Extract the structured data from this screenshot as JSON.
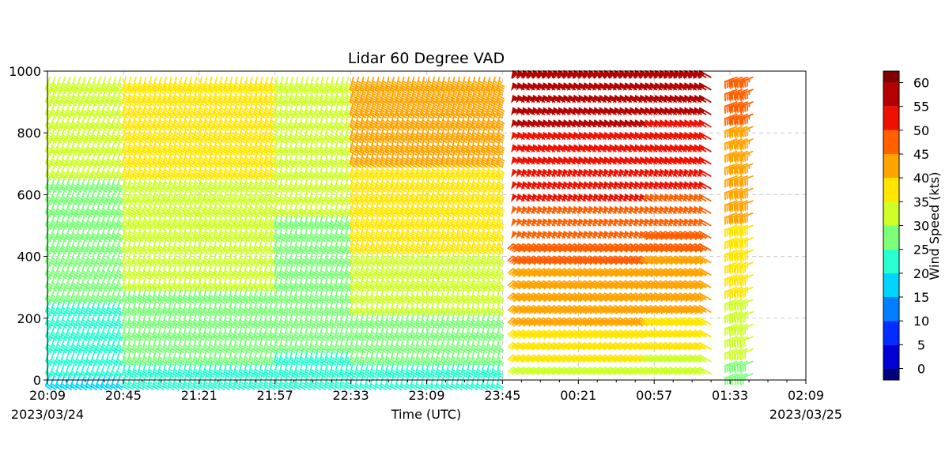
{
  "chart_data": {
    "type": "wind-barb",
    "title": "Lidar 60 Degree VAD",
    "xlabel": "Time (UTC)",
    "ylabel": "",
    "x_ticks": [
      "20:09",
      "20:45",
      "21:21",
      "21:57",
      "22:33",
      "23:09",
      "23:45",
      "00:21",
      "00:57",
      "01:33",
      "02:09"
    ],
    "start_date": "2023/03/24",
    "end_date": "2023/03/25",
    "ylim": [
      0,
      1000
    ],
    "y_ticks": [
      "0",
      "200",
      "400",
      "600",
      "800",
      "1000"
    ],
    "grid": true,
    "colorbar": {
      "label": "Wind Speed (kts)",
      "ticks": [
        "0",
        "5",
        "10",
        "15",
        "20",
        "25",
        "30",
        "35",
        "40",
        "45",
        "50",
        "55",
        "60"
      ],
      "range": [
        0,
        60
      ],
      "colors": [
        "#00007f",
        "#0000d4",
        "#002cff",
        "#0080ff",
        "#00d4ff",
        "#29ffce",
        "#7dff7a",
        "#ceff29",
        "#ffe600",
        "#ffa400",
        "#ff6000",
        "#f01000",
        "#b30000",
        "#7f0000"
      ]
    },
    "profile_altitudes_m": [
      20,
      60,
      100,
      140,
      180,
      220,
      260,
      300,
      340,
      380,
      420,
      460,
      500,
      540,
      580,
      620,
      660,
      700,
      740,
      780,
      820,
      860,
      900,
      940,
      980
    ],
    "regimes": [
      {
        "time_range": [
          "20:09",
          "20:45"
        ],
        "speed_kts_near_surface": 18,
        "speed_kts_aloft": 33,
        "direction_deg": 200
      },
      {
        "time_range": [
          "20:45",
          "21:57"
        ],
        "speed_kts_near_surface": 22,
        "speed_kts_aloft": 38,
        "direction_deg": 195
      },
      {
        "time_range": [
          "21:57",
          "22:33"
        ],
        "speed_kts_near_surface": 22,
        "speed_kts_aloft": 33,
        "direction_deg": 195
      },
      {
        "time_range": [
          "22:33",
          "23:45"
        ],
        "speed_kts_near_surface": 20,
        "speed_kts_aloft": 44,
        "direction_deg": 195
      },
      {
        "time_range": [
          "23:54",
          "00:57"
        ],
        "speed_kts_near_surface": 30,
        "speed_kts_aloft": 58,
        "direction_deg": 300
      },
      {
        "time_range": [
          "00:57",
          "01:25"
        ],
        "speed_kts_near_surface": 28,
        "speed_kts_aloft": 58,
        "direction_deg": 300
      },
      {
        "time_range": [
          "01:35",
          "01:45"
        ],
        "speed_kts_near_surface": 25,
        "speed_kts_aloft": 47,
        "direction_deg": 250
      }
    ]
  }
}
